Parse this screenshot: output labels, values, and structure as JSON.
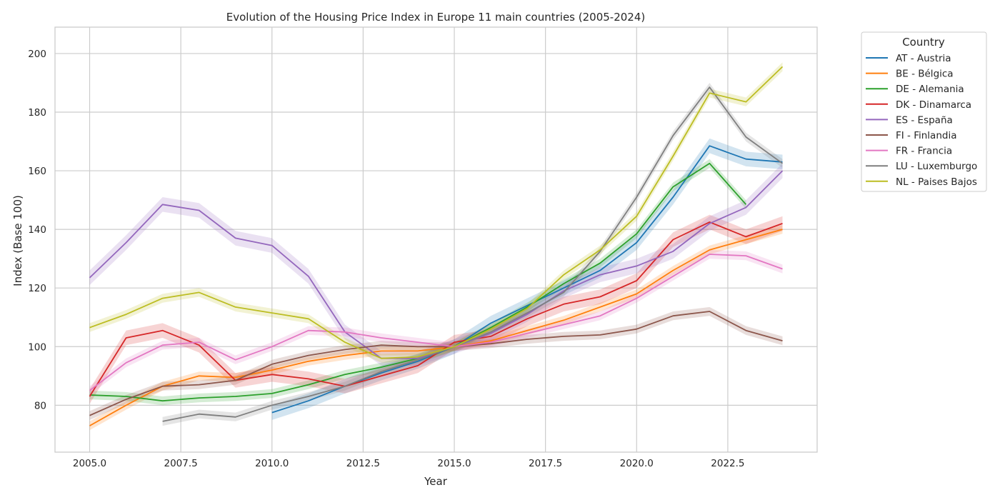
{
  "chart_data": {
    "type": "line",
    "title": "Evolution of the Housing Price Index in Europe 11 main countries (2005-2024)",
    "xlabel": "Year",
    "ylabel": "Index (Base 100)",
    "xlim": [
      2004.05,
      2024.95
    ],
    "ylim": [
      64,
      209
    ],
    "xticks": [
      2005.0,
      2007.5,
      2010.0,
      2012.5,
      2015.0,
      2017.5,
      2020.0,
      2022.5
    ],
    "xtick_labels": [
      "2005.0",
      "2007.5",
      "2010.0",
      "2012.5",
      "2015.0",
      "2017.5",
      "2020.0",
      "2022.5"
    ],
    "yticks": [
      80,
      100,
      120,
      140,
      160,
      180,
      200
    ],
    "ytick_labels": [
      "80",
      "100",
      "120",
      "140",
      "160",
      "180",
      "200"
    ],
    "grid": true,
    "legend": {
      "title": "Country",
      "placement": "outside-right"
    },
    "series": [
      {
        "name": "AT - Austria",
        "color": "#1f77b4",
        "band": 2.5,
        "x": [
          2010,
          2011,
          2012,
          2013,
          2014,
          2015,
          2016,
          2017,
          2018,
          2019,
          2020,
          2021,
          2022,
          2023,
          2024
        ],
        "values": [
          77.5,
          81.5,
          86.5,
          91,
          95,
          100,
          108,
          114,
          120,
          126,
          135.5,
          151,
          168.5,
          164,
          163
        ]
      },
      {
        "name": "BE - Bélgica",
        "color": "#ff7f0e",
        "band": 1.5,
        "x": [
          2005,
          2006,
          2007,
          2008,
          2009,
          2010,
          2011,
          2012,
          2013,
          2014,
          2015,
          2016,
          2017,
          2018,
          2019,
          2020,
          2021,
          2022,
          2023,
          2024
        ],
        "values": [
          73,
          80,
          86.5,
          90,
          89.5,
          92,
          95,
          97,
          98.5,
          98.5,
          100,
          102,
          105.5,
          109,
          113.5,
          118,
          126,
          133,
          136.5,
          140
        ]
      },
      {
        "name": "DE - Alemania",
        "color": "#2ca02c",
        "band": 1.5,
        "x": [
          2005,
          2006,
          2007,
          2008,
          2009,
          2010,
          2011,
          2012,
          2013,
          2014,
          2015,
          2016,
          2017,
          2018,
          2019,
          2020,
          2021,
          2022,
          2023
        ],
        "values": [
          83.5,
          83,
          81.5,
          82.5,
          83,
          84,
          87,
          90.5,
          93,
          96,
          100,
          106.5,
          113.5,
          121.5,
          128.5,
          138.5,
          154.5,
          162.5,
          148.5
        ]
      },
      {
        "name": "DK - Dinamarca",
        "color": "#d62728",
        "band": 2.5,
        "x": [
          2005,
          2006,
          2007,
          2008,
          2009,
          2010,
          2011,
          2012,
          2013,
          2014,
          2015,
          2016,
          2017,
          2018,
          2019,
          2020,
          2021,
          2022,
          2023,
          2024
        ],
        "values": [
          83,
          103,
          105.5,
          100.5,
          88.5,
          90.5,
          89,
          86.5,
          90,
          93.5,
          101.5,
          103.5,
          109.5,
          114.5,
          117,
          122.5,
          136.5,
          142.5,
          137.5,
          142
        ]
      },
      {
        "name": "ES - España",
        "color": "#9467bd",
        "band": 2.5,
        "x": [
          2005,
          2006,
          2007,
          2008,
          2009,
          2010,
          2011,
          2012,
          2013,
          2014,
          2015,
          2016,
          2017,
          2018,
          2019,
          2020,
          2021,
          2022,
          2023,
          2024
        ],
        "values": [
          123.5,
          135.5,
          148.5,
          146.5,
          137,
          134.5,
          124,
          105,
          96,
          96,
          100,
          104.5,
          111,
          119,
          124.5,
          127.5,
          132.5,
          142,
          147.5,
          160
        ]
      },
      {
        "name": "FI - Finlandia",
        "color": "#8c564b",
        "band": 1.5,
        "x": [
          2005,
          2006,
          2007,
          2008,
          2009,
          2010,
          2011,
          2012,
          2013,
          2014,
          2015,
          2016,
          2017,
          2018,
          2019,
          2020,
          2021,
          2022,
          2023,
          2024
        ],
        "values": [
          76.5,
          82,
          86.5,
          87,
          88.5,
          94,
          97,
          99,
          100.5,
          100,
          100,
          101,
          102.5,
          103.5,
          104,
          106,
          110.5,
          112,
          105.5,
          102
        ]
      },
      {
        "name": "FR - Francia",
        "color": "#e377c2",
        "band": 1.5,
        "x": [
          2005,
          2006,
          2007,
          2008,
          2009,
          2010,
          2011,
          2012,
          2013,
          2014,
          2015,
          2016,
          2017,
          2018,
          2019,
          2020,
          2021,
          2022,
          2023,
          2024
        ],
        "values": [
          85,
          94.5,
          100.5,
          101.5,
          95.5,
          100,
          105.5,
          105,
          103,
          101.5,
          100,
          101.5,
          104.5,
          107.5,
          110.5,
          116.5,
          124,
          131.5,
          131,
          126.5
        ]
      },
      {
        "name": "LU - Luxemburgo",
        "color": "#7f7f7f",
        "band": 1.5,
        "x": [
          2007,
          2008,
          2009,
          2010,
          2011,
          2012,
          2013,
          2014,
          2015,
          2016,
          2017,
          2018,
          2019,
          2020,
          2021,
          2022,
          2023,
          2024
        ],
        "values": [
          74.5,
          77,
          76,
          80,
          83,
          86.5,
          91.5,
          95.5,
          100,
          105,
          111.5,
          118.5,
          132.5,
          151,
          172,
          188.5,
          171.5,
          162.5
        ]
      },
      {
        "name": "NL - Paises Bajos",
        "color": "#bcbd22",
        "band": 1.5,
        "x": [
          2005,
          2006,
          2007,
          2008,
          2009,
          2010,
          2011,
          2012,
          2013,
          2014,
          2015,
          2016,
          2017,
          2018,
          2019,
          2020,
          2021,
          2022,
          2023,
          2024
        ],
        "values": [
          106.5,
          111,
          116.5,
          118.5,
          113.5,
          111.5,
          109.5,
          101.5,
          96,
          96.5,
          100,
          106,
          113,
          124.5,
          133,
          144.5,
          165,
          186.5,
          183.5,
          195.5
        ]
      }
    ]
  }
}
